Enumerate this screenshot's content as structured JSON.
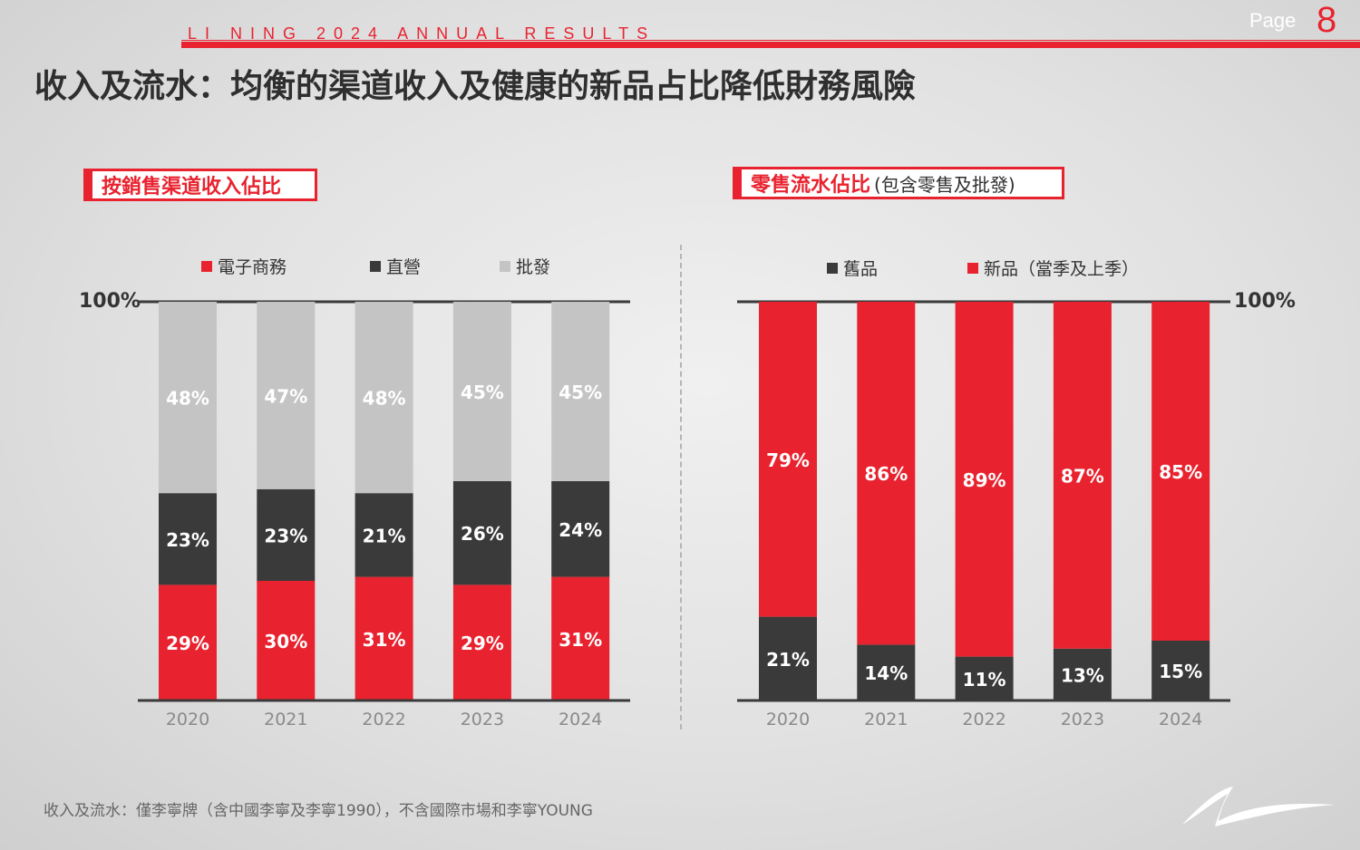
{
  "header": {
    "tagline": "LI NING 2024 ANNUAL RESULTS",
    "page_label": "Page",
    "page_number": "8",
    "title": "收入及流水：均衡的渠道收入及健康的新品占比降低財務風險"
  },
  "colors": {
    "red": "#e8232f",
    "dark": "#3a3a3a",
    "grey": "#c4c4c4"
  },
  "left_panel": {
    "section_title": "按銷售渠道收入佔比",
    "hundred_label": "100%",
    "legend": [
      {
        "label": "電子商務",
        "color": "#e8232f"
      },
      {
        "label": "直營",
        "color": "#3a3a3a"
      },
      {
        "label": "批發",
        "color": "#c4c4c4"
      }
    ]
  },
  "right_panel": {
    "section_title": "零售流水佔比",
    "section_subtitle": "(包含零售及批發)",
    "hundred_label": "100%",
    "legend": [
      {
        "label": "舊品",
        "color": "#3a3a3a"
      },
      {
        "label": "新品（當季及上季）",
        "color": "#e8232f"
      }
    ]
  },
  "chart_data": [
    {
      "type": "bar",
      "stacked": true,
      "title": "按銷售渠道收入佔比",
      "categories": [
        "2020",
        "2021",
        "2022",
        "2023",
        "2024"
      ],
      "ylim": [
        0,
        100
      ],
      "series": [
        {
          "name": "電子商務",
          "values": [
            29,
            30,
            31,
            29,
            31
          ],
          "labels": [
            "29%",
            "30%",
            "31%",
            "29%",
            "31%"
          ],
          "color": "#e8232f",
          "label_color": "#ffffff"
        },
        {
          "name": "直營",
          "values": [
            23,
            23,
            21,
            26,
            24
          ],
          "labels": [
            "23%",
            "23%",
            "21%",
            "26%",
            "24%"
          ],
          "color": "#3a3a3a",
          "label_color": "#ffffff"
        },
        {
          "name": "批發",
          "values": [
            48,
            47,
            48,
            45,
            45
          ],
          "labels": [
            "48%",
            "47%",
            "48%",
            "45%",
            "45%"
          ],
          "color": "#c4c4c4",
          "label_color": "#ffffff"
        }
      ]
    },
    {
      "type": "bar",
      "stacked": true,
      "title": "零售流水佔比",
      "subtitle": "(包含零售及批發)",
      "categories": [
        "2020",
        "2021",
        "2022",
        "2023",
        "2024"
      ],
      "ylim": [
        0,
        100
      ],
      "series": [
        {
          "name": "舊品",
          "values": [
            21,
            14,
            11,
            13,
            15
          ],
          "labels": [
            "21%",
            "14%",
            "11%",
            "13%",
            "15%"
          ],
          "color": "#3a3a3a",
          "label_color": "#ffffff"
        },
        {
          "name": "新品（當季及上季）",
          "values": [
            79,
            86,
            89,
            87,
            85
          ],
          "labels": [
            "79%",
            "86%",
            "89%",
            "87%",
            "85%"
          ],
          "color": "#e8232f",
          "label_color": "#ffffff"
        }
      ]
    }
  ],
  "footnote": "收入及流水：僅李寧牌（含中國李寧及李寧1990），不含國際市場和李寧YOUNG"
}
